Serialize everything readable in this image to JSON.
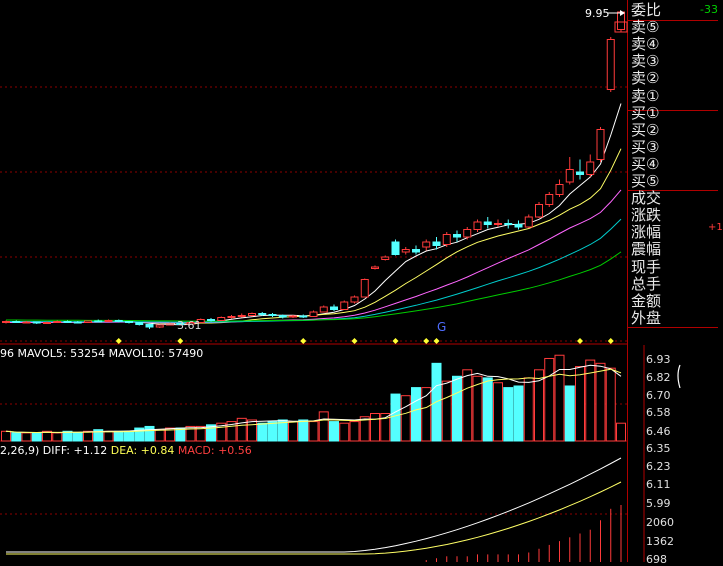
{
  "price_marker": "9.95",
  "low_marker": "3.61",
  "g_marker": "G",
  "ratio_value": "-33",
  "side_delta": "+1",
  "order_book": [
    "委比",
    "卖⑤",
    "卖④",
    "卖③",
    "卖②",
    "卖①",
    "买①",
    "买②",
    "买③",
    "买④",
    "买⑤",
    "成交",
    "涨跌",
    "涨幅",
    "震幅",
    "现手",
    "总手",
    "金额",
    "外盘"
  ],
  "volume_legend": {
    "prefix": "96",
    "mavol5": "MAVOL5: 53254",
    "mavol10": "MAVOL10: 57490"
  },
  "macd_legend": {
    "prefix": "2,26,9)",
    "diff": "DIFF: +1.12",
    "dea": "DEA: +0.84",
    "macd": "MACD: +0.56"
  },
  "price_scale": [
    "6.93",
    "6.82",
    "6.70",
    "6.58",
    "6.46",
    "6.35",
    "6.23",
    "6.11",
    "5.99",
    "2060",
    "1362",
    "698"
  ],
  "colors": {
    "up": "#ff3b3b",
    "down": "#54ffff",
    "ma5": "#ffffff",
    "ma10": "#ffff66",
    "ma20": "#ff66ff",
    "ma30": "#00cccc",
    "ma60": "#00cc00",
    "grid": "#8b0000",
    "axis": "#b00000"
  },
  "chart_data": {
    "type": "candlestick",
    "candles": [
      [
        3.75,
        3.76,
        3.72,
        3.78
      ],
      [
        3.76,
        3.74,
        3.73,
        3.78
      ],
      [
        3.74,
        3.75,
        3.72,
        3.77
      ],
      [
        3.75,
        3.73,
        3.71,
        3.76
      ],
      [
        3.73,
        3.74,
        3.72,
        3.76
      ],
      [
        3.74,
        3.76,
        3.73,
        3.78
      ],
      [
        3.76,
        3.75,
        3.73,
        3.78
      ],
      [
        3.75,
        3.74,
        3.72,
        3.77
      ],
      [
        3.74,
        3.77,
        3.73,
        3.78
      ],
      [
        3.77,
        3.76,
        3.74,
        3.8
      ],
      [
        3.76,
        3.78,
        3.75,
        3.8
      ],
      [
        3.78,
        3.76,
        3.74,
        3.8
      ],
      [
        3.76,
        3.74,
        3.72,
        3.77
      ],
      [
        3.74,
        3.7,
        3.68,
        3.75
      ],
      [
        3.7,
        3.65,
        3.61,
        3.71
      ],
      [
        3.65,
        3.69,
        3.63,
        3.7
      ],
      [
        3.69,
        3.72,
        3.68,
        3.74
      ],
      [
        3.72,
        3.71,
        3.69,
        3.74
      ],
      [
        3.71,
        3.74,
        3.7,
        3.76
      ],
      [
        3.74,
        3.8,
        3.73,
        3.82
      ],
      [
        3.8,
        3.78,
        3.76,
        3.83
      ],
      [
        3.78,
        3.84,
        3.77,
        3.86
      ],
      [
        3.84,
        3.86,
        3.82,
        3.89
      ],
      [
        3.86,
        3.88,
        3.84,
        3.92
      ],
      [
        3.88,
        3.92,
        3.86,
        3.94
      ],
      [
        3.92,
        3.9,
        3.87,
        3.95
      ],
      [
        3.9,
        3.88,
        3.85,
        3.93
      ],
      [
        3.88,
        3.85,
        3.82,
        3.9
      ],
      [
        3.85,
        3.87,
        3.83,
        3.89
      ],
      [
        3.87,
        3.86,
        3.83,
        3.9
      ],
      [
        3.86,
        3.95,
        3.85,
        3.98
      ],
      [
        3.95,
        4.05,
        3.94,
        4.08
      ],
      [
        4.05,
        4.0,
        3.97,
        4.1
      ],
      [
        4.0,
        4.15,
        3.99,
        4.18
      ],
      [
        4.15,
        4.25,
        4.12,
        4.28
      ],
      [
        4.25,
        4.6,
        4.24,
        4.62
      ],
      [
        4.82,
        4.85,
        4.8,
        4.88
      ],
      [
        5.0,
        5.05,
        4.98,
        5.08
      ],
      [
        5.35,
        5.1,
        5.08,
        5.4
      ],
      [
        5.15,
        5.2,
        5.1,
        5.25
      ],
      [
        5.2,
        5.15,
        5.1,
        5.28
      ],
      [
        5.25,
        5.35,
        5.18,
        5.4
      ],
      [
        5.35,
        5.28,
        5.2,
        5.45
      ],
      [
        5.3,
        5.5,
        5.25,
        5.55
      ],
      [
        5.5,
        5.45,
        5.35,
        5.58
      ],
      [
        5.45,
        5.6,
        5.4,
        5.65
      ],
      [
        5.6,
        5.75,
        5.55,
        5.8
      ],
      [
        5.75,
        5.7,
        5.62,
        5.85
      ],
      [
        5.7,
        5.72,
        5.65,
        5.8
      ],
      [
        5.72,
        5.7,
        5.62,
        5.8
      ],
      [
        5.7,
        5.65,
        5.6,
        5.78
      ],
      [
        5.65,
        5.85,
        5.63,
        5.9
      ],
      [
        5.85,
        6.1,
        5.83,
        6.15
      ],
      [
        6.1,
        6.3,
        6.05,
        6.35
      ],
      [
        6.3,
        6.5,
        6.25,
        6.6
      ],
      [
        6.55,
        6.8,
        6.5,
        7.05
      ],
      [
        6.75,
        6.7,
        6.6,
        7.0
      ],
      [
        6.7,
        6.95,
        6.65,
        7.1
      ],
      [
        7.0,
        7.6,
        6.95,
        7.65
      ],
      [
        8.4,
        9.4,
        8.35,
        9.45
      ],
      [
        9.6,
        9.95,
        9.55,
        9.95
      ]
    ],
    "volumes": [
      6,
      5,
      5,
      5,
      6,
      5,
      6,
      5,
      6,
      7,
      6,
      6,
      6,
      8,
      9,
      7,
      8,
      8,
      9,
      9,
      10,
      11,
      12,
      14,
      13,
      11,
      12,
      13,
      12,
      13,
      12,
      18,
      12,
      11,
      12,
      15,
      17,
      17,
      29,
      28,
      33,
      33,
      48,
      37,
      40,
      44,
      40,
      39,
      36,
      33,
      34,
      39,
      44,
      51,
      53,
      34,
      46,
      50,
      48,
      45,
      11
    ],
    "volume_up": [
      true,
      false,
      true,
      false,
      true,
      true,
      false,
      false,
      true,
      false,
      true,
      false,
      false,
      false,
      false,
      true,
      true,
      false,
      true,
      true,
      false,
      true,
      true,
      true,
      true,
      false,
      false,
      false,
      true,
      false,
      true,
      true,
      false,
      true,
      true,
      true,
      true,
      true,
      false,
      true,
      false,
      true,
      false,
      true,
      false,
      true,
      true,
      false,
      true,
      false,
      false,
      true,
      true,
      true,
      true,
      false,
      true,
      true,
      true,
      true,
      true
    ],
    "g_index": 37,
    "diamond_indices": [
      11,
      17,
      29,
      34,
      38,
      41,
      42,
      56,
      59
    ],
    "macd_bars": [
      0,
      0,
      0,
      0,
      0,
      0,
      0,
      0,
      0,
      0,
      0,
      0,
      0,
      0,
      0,
      0,
      0,
      0,
      0,
      0,
      0,
      0,
      0,
      0,
      0,
      0,
      0,
      0,
      0,
      0,
      0,
      0,
      0,
      0,
      0,
      0,
      0,
      0,
      0,
      0,
      0,
      1,
      2,
      3,
      3,
      3,
      4,
      4,
      4,
      4,
      4,
      5,
      7,
      9,
      11,
      13,
      15,
      17,
      22,
      28,
      30
    ]
  }
}
